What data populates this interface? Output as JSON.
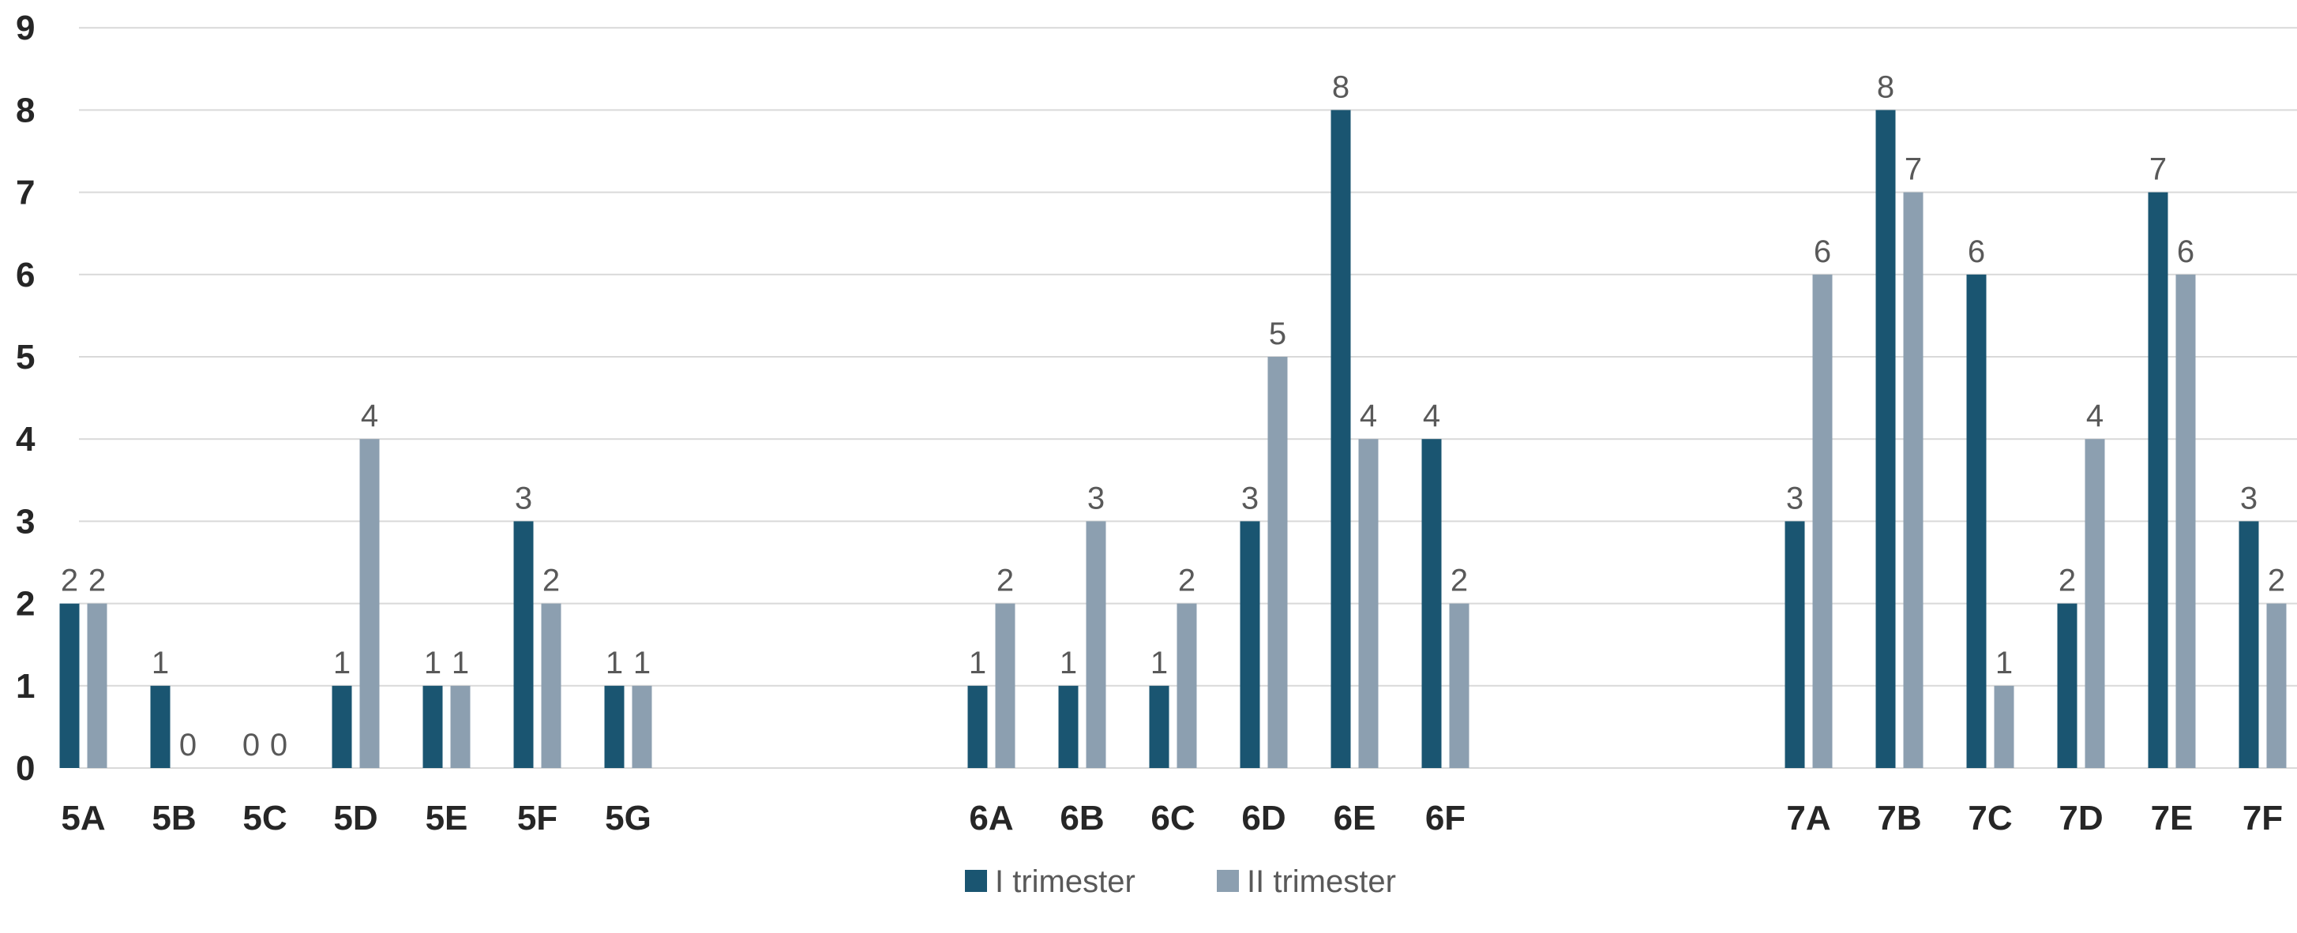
{
  "chart_data": {
    "type": "bar",
    "categories": [
      "5A",
      "5B",
      "5C",
      "5D",
      "5E",
      "5F",
      "5G",
      "",
      "",
      "",
      "6A",
      "6B",
      "6C",
      "6D",
      "6E",
      "6F",
      "",
      "",
      "",
      "7A",
      "7B",
      "7C",
      "7D",
      "7E",
      "7F"
    ],
    "series": [
      {
        "name": "I trimester",
        "color": "#1a5571",
        "values": [
          2,
          1,
          0,
          1,
          1,
          3,
          1,
          null,
          null,
          null,
          1,
          1,
          1,
          3,
          8,
          4,
          null,
          null,
          null,
          3,
          8,
          6,
          2,
          7,
          3
        ]
      },
      {
        "name": "II trimester",
        "color": "#8c9fb0",
        "values": [
          2,
          0,
          0,
          4,
          1,
          2,
          1,
          null,
          null,
          null,
          2,
          3,
          2,
          5,
          4,
          2,
          null,
          null,
          null,
          6,
          7,
          1,
          4,
          6,
          2
        ]
      }
    ],
    "ylim": [
      0,
      9
    ],
    "yticks": [
      "0",
      "1",
      "2",
      "3",
      "4",
      "5",
      "6",
      "7",
      "8",
      "9"
    ],
    "grid": true,
    "legend_position": "bottom"
  }
}
